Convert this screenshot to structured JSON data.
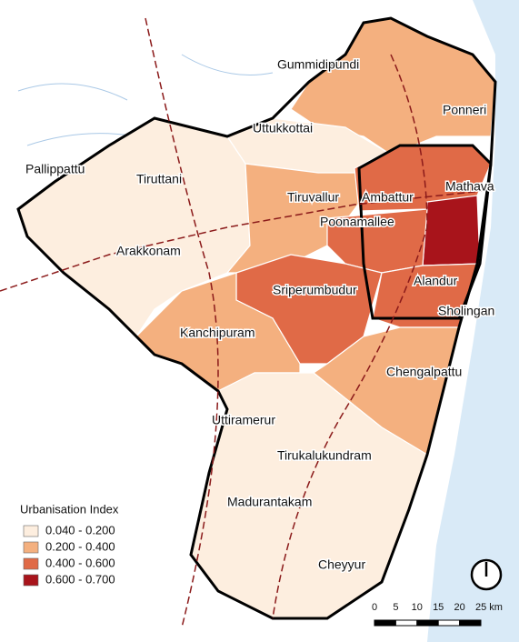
{
  "map": {
    "regions": [
      "Gummidipundi",
      "Ponneri",
      "Uttukkottai",
      "Pallippattu",
      "Tiruttani",
      "Tiruvallur",
      "Ambattur",
      "Mathava",
      "Poonamallee",
      "Arakkonam",
      "Alandur",
      "Sriperumbudur",
      "Sholingan",
      "Kanchipuram",
      "Chengalpattu",
      "Uttiramerur",
      "Tirukalukundram",
      "Madurantakam",
      "Cheyyur"
    ],
    "legend": {
      "title": "Urbanisation Index",
      "items": [
        {
          "label": "0.040 - 0.200",
          "color": "#fdeedf"
        },
        {
          "label": "0.200 - 0.400",
          "color": "#f4b07f"
        },
        {
          "label": "0.400 - 0.600",
          "color": "#e06a47"
        },
        {
          "label": "0.600 - 0.700",
          "color": "#a8141b"
        }
      ]
    },
    "scale_bar": {
      "labels": [
        "0",
        "5",
        "10",
        "15",
        "20",
        "25 km"
      ]
    }
  }
}
